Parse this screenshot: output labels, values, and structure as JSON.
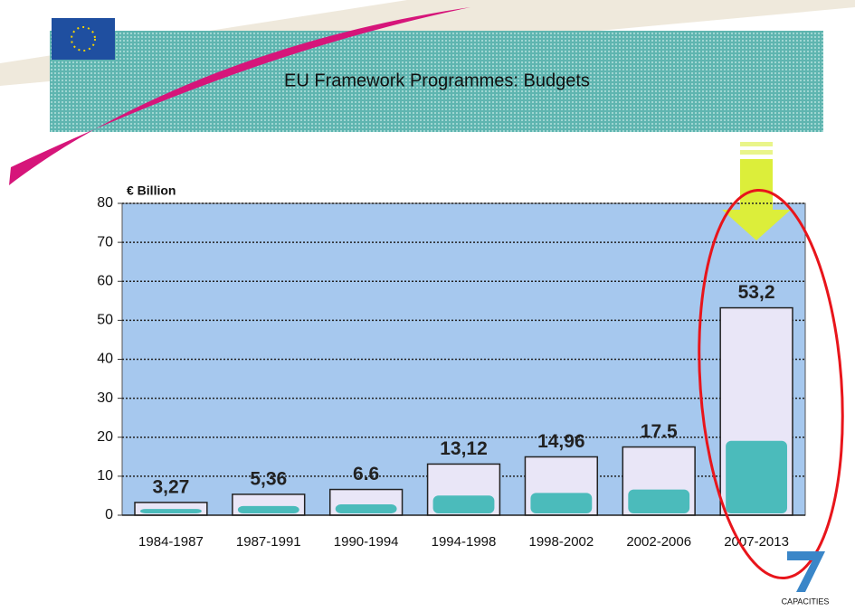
{
  "chart_data": {
    "type": "bar",
    "title": "EU Framework Programmes: Budgets",
    "y_label": "€ Billion",
    "categories": [
      "1984-1987",
      "1987-1991",
      "1990-1994",
      "1994-1998",
      "1998-2002",
      "2002-2006",
      "2007-2013"
    ],
    "values": [
      3.27,
      5.36,
      6.6,
      13.12,
      14.96,
      17.5,
      53.2
    ],
    "value_labels": [
      "3,27",
      "5,36",
      "6.6",
      "13,12",
      "14,96",
      "17.5",
      "53,2"
    ],
    "color": "#e9e6f7",
    "ylim": [
      0,
      80
    ],
    "yticks": [
      0,
      10,
      20,
      30,
      40,
      50,
      60,
      70,
      80
    ],
    "grid": true,
    "logo_text": "CAPACITIES"
  }
}
